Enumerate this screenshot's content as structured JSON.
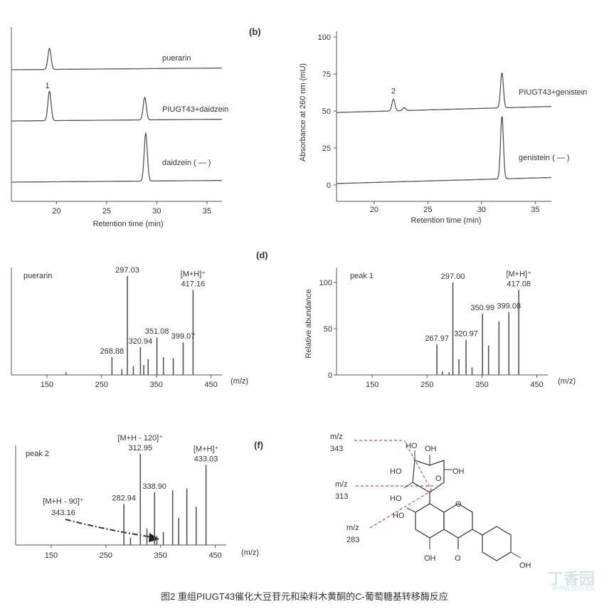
{
  "caption": "图2 重组PIUGT43催化大豆苷元和染料木黄酮的C-葡萄糖基转移酶反应",
  "watermark": "丁香园",
  "watermark_sub": "WWW.DXY.CN",
  "panels": {
    "b": "(b)",
    "d": "(d)",
    "f": "(f)"
  },
  "chart_data": [
    {
      "type": "line",
      "panel": "a",
      "xlabel": "Retention time (min)",
      "xticks": [
        "20",
        "25",
        "30",
        "35"
      ],
      "xlim": [
        15.5,
        36.5
      ],
      "series": [
        {
          "name": "puerarin",
          "peaks": [
            {
              "x": 19.3,
              "h": 30
            }
          ]
        },
        {
          "name": "PIUGT43+daidzein",
          "peaks": [
            {
              "x": 19.3,
              "h": 42
            },
            {
              "x": 28.8,
              "h": 32
            }
          ],
          "peak_labels": [
            {
              "x": 19.3,
              "text": "1"
            }
          ]
        },
        {
          "name": "daidzein ( — )",
          "peaks": [
            {
              "x": 28.9,
              "h": 68
            }
          ]
        }
      ]
    },
    {
      "type": "line",
      "panel": "b",
      "xlabel": "Retention time (min)",
      "ylabel": "Absorbance at 260 nm (mU)",
      "xticks": [
        "20",
        "25",
        "30",
        "35"
      ],
      "yticks": [
        "0",
        "25",
        "50",
        "75",
        "100"
      ],
      "xlim": [
        16.5,
        36.5
      ],
      "ylim": [
        0,
        100
      ],
      "series": [
        {
          "name": "PIUGT43+genistein",
          "baseline": 49,
          "peaks": [
            {
              "x": 21.8,
              "h": 8
            },
            {
              "x": 22.8,
              "h": 2
            },
            {
              "x": 31.9,
              "h": 24
            }
          ],
          "peak_labels": [
            {
              "x": 21.8,
              "text": "2"
            }
          ]
        },
        {
          "name": "genistein ( — )",
          "baseline": 1,
          "peaks": [
            {
              "x": 31.9,
              "h": 43
            }
          ]
        }
      ]
    },
    {
      "type": "bar",
      "panel": "c",
      "title": "puerarin",
      "xlabel": "(m/z)",
      "xticks": [
        "150",
        "250",
        "350",
        "450"
      ],
      "xlim": [
        85,
        470
      ],
      "ymax": 100,
      "peaks": [
        {
          "x": 185,
          "y": 3
        },
        {
          "x": 268.88,
          "y": 18
        },
        {
          "x": 287,
          "y": 6
        },
        {
          "x": 297.03,
          "y": 100
        },
        {
          "x": 308,
          "y": 9
        },
        {
          "x": 320.94,
          "y": 28
        },
        {
          "x": 327,
          "y": 10
        },
        {
          "x": 335,
          "y": 16
        },
        {
          "x": 351.08,
          "y": 38
        },
        {
          "x": 363,
          "y": 18
        },
        {
          "x": 381,
          "y": 17
        },
        {
          "x": 399.07,
          "y": 33
        },
        {
          "x": 417.16,
          "y": 86
        }
      ],
      "annotations": [
        {
          "x": 297.03,
          "lines": [
            "297.03"
          ]
        },
        {
          "x": 268.88,
          "lines": [
            "268.88"
          ]
        },
        {
          "x": 320.94,
          "lines": [
            "320.94"
          ]
        },
        {
          "x": 351.08,
          "lines": [
            "351.08"
          ]
        },
        {
          "x": 399.07,
          "lines": [
            "399.07"
          ]
        },
        {
          "x": 417.16,
          "lines": [
            "[M+H]⁺",
            "417.16"
          ]
        }
      ]
    },
    {
      "type": "bar",
      "panel": "d",
      "title": "peak 1",
      "xlabel": "(m/z)",
      "ylabel": "Relative abundance",
      "xticks": [
        "150",
        "250",
        "350",
        "450"
      ],
      "yticks": [
        "0",
        "50",
        "100"
      ],
      "xlim": [
        85,
        470
      ],
      "ylim": [
        0,
        100
      ],
      "peaks": [
        {
          "x": 267.97,
          "y": 33
        },
        {
          "x": 278,
          "y": 4
        },
        {
          "x": 290,
          "y": 3
        },
        {
          "x": 297.0,
          "y": 100
        },
        {
          "x": 308,
          "y": 17
        },
        {
          "x": 320.97,
          "y": 38
        },
        {
          "x": 332,
          "y": 8
        },
        {
          "x": 350.99,
          "y": 66
        },
        {
          "x": 362,
          "y": 32
        },
        {
          "x": 381,
          "y": 58
        },
        {
          "x": 399.08,
          "y": 68
        },
        {
          "x": 417.08,
          "y": 92
        }
      ],
      "annotations": [
        {
          "x": 297.0,
          "lines": [
            "297.00"
          ]
        },
        {
          "x": 267.97,
          "lines": [
            "267.97"
          ]
        },
        {
          "x": 320.97,
          "lines": [
            "320.97"
          ]
        },
        {
          "x": 350.99,
          "lines": [
            "350.99"
          ]
        },
        {
          "x": 399.08,
          "lines": [
            "399.08"
          ]
        },
        {
          "x": 417.08,
          "lines": [
            "[M+H]⁺",
            "417.08"
          ]
        }
      ]
    },
    {
      "type": "bar",
      "panel": "e",
      "title": "peak 2",
      "xlabel": "(m/z)",
      "xticks": [
        "150",
        "250",
        "350",
        "450"
      ],
      "xlim": [
        85,
        470
      ],
      "ymax": 100,
      "peaks": [
        {
          "x": 282.94,
          "y": 45
        },
        {
          "x": 295,
          "y": 8
        },
        {
          "x": 312.95,
          "y": 100
        },
        {
          "x": 325,
          "y": 18
        },
        {
          "x": 338.9,
          "y": 58
        },
        {
          "x": 343.16,
          "y": 10
        },
        {
          "x": 355,
          "y": 14
        },
        {
          "x": 372,
          "y": 60
        },
        {
          "x": 383,
          "y": 30
        },
        {
          "x": 398,
          "y": 62
        },
        {
          "x": 415,
          "y": 42
        },
        {
          "x": 433.03,
          "y": 88
        }
      ],
      "annotations": [
        {
          "x": 312.95,
          "lines": [
            "[M+H - 120]⁺",
            "312.95"
          ]
        },
        {
          "x": 282.94,
          "lines": [
            "282.94"
          ]
        },
        {
          "x": 338.9,
          "lines": [
            "338.90"
          ]
        },
        {
          "x": 433.03,
          "lines": [
            "[M+H]⁺",
            "433.03"
          ]
        }
      ],
      "arrow_label": [
        "[M+H - 90]⁺",
        "343.16"
      ]
    }
  ],
  "structure": {
    "fragments": [
      {
        "label": "m/z",
        "value": "343"
      },
      {
        "label": "m/z",
        "value": "313"
      },
      {
        "label": "m/z",
        "value": "283"
      }
    ],
    "atoms": [
      "HO",
      "OH",
      "HO",
      "OH",
      "HO",
      "O",
      "HO",
      "O",
      "OH",
      "O",
      "OH"
    ]
  }
}
